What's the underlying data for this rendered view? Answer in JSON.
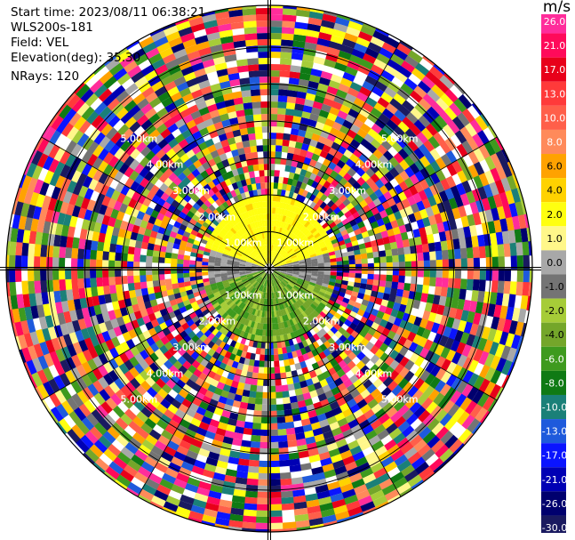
{
  "header": {
    "start_time": "Start time: 2023/08/11 06:38:21",
    "instrument": "WLS200s-181",
    "field": "Field: VEL",
    "elevation": "Elevation(deg): 35.30",
    "nrays": "NRays: 120"
  },
  "colorbar": {
    "unit": "m/s",
    "ticks": [
      "26.0",
      "21.0",
      "17.0",
      "13.0",
      "10.0",
      "8.0",
      "6.0",
      "4.0",
      "2.0",
      "1.0",
      "0.0",
      "-1.0",
      "-2.0",
      "-4.0",
      "-6.0",
      "-8.0",
      "-10.0",
      "-13.0",
      "-17.0",
      "-21.0",
      "-26.0",
      "-30.0"
    ],
    "colors": [
      "#ff2d9b",
      "#ff0a5a",
      "#e8001a",
      "#ff3a3a",
      "#ff5f4a",
      "#ff8a5a",
      "#ffa200",
      "#ffd200",
      "#ffff10",
      "#fff78a",
      "#a8a8a8",
      "#747474",
      "#a6cc38",
      "#74a62a",
      "#3e9a1e",
      "#0f7a14",
      "#1a8078",
      "#1e5adc",
      "#0a14ff",
      "#0000b4",
      "#00006e",
      "#1a1a60"
    ]
  },
  "chart_data": {
    "type": "heatmap",
    "projection": "ppi",
    "field": "VEL",
    "units": "m/s",
    "nrays": 120,
    "elevation_deg": 35.3,
    "range_rings_km": [
      1.0,
      2.0,
      3.0,
      4.0,
      5.0,
      6.0
    ],
    "range_ring_label": "km",
    "near_field_pattern": [
      {
        "direction": "north",
        "range_km": [
          0.0,
          1.9
        ],
        "velocity_ms": [
          2.0,
          4.0
        ]
      },
      {
        "direction": "south",
        "range_km": [
          0.0,
          1.9
        ],
        "velocity_ms": [
          -6.0,
          -1.0
        ]
      },
      {
        "direction": "east-west",
        "range_km": [
          0.0,
          1.6
        ],
        "velocity_ms": [
          -1.0,
          1.0
        ]
      }
    ],
    "far_field": "noise"
  },
  "rings": [
    {
      "label": "1.00km"
    },
    {
      "label": "2.00km"
    },
    {
      "label": "3.00km"
    },
    {
      "label": "4.00km"
    },
    {
      "label": "5.00km"
    }
  ]
}
